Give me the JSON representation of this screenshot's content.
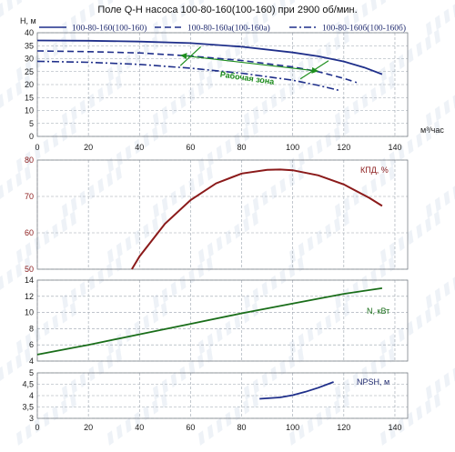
{
  "chart_data": {
    "title": "Поле Q-H насоса 100-80-160(100-160) при 2900 об/мин.",
    "x_unit": "м³/час",
    "x_ticks": [
      0,
      20,
      40,
      60,
      80,
      100,
      120,
      140
    ],
    "xlim": [
      0,
      145
    ],
    "colors": {
      "blue": "#1f2f8a",
      "green": "#1e8f1e",
      "red": "#8b1a1a",
      "dark_green": "#1a6e1a"
    },
    "panels": [
      {
        "id": "qh",
        "type": "line",
        "ylabel": "H, м",
        "ylim": [
          0,
          40
        ],
        "y_ticks": [
          0,
          5,
          10,
          15,
          20,
          25,
          30,
          35,
          40
        ],
        "legend_position": "top",
        "series": [
          {
            "name": "100-80-160(100-160)",
            "style": "solid",
            "x": [
              0,
              20,
              40,
              60,
              80,
              100,
              110,
              120,
              128,
              135
            ],
            "y": [
              37,
              36.9,
              36.6,
              36,
              34.6,
              32.4,
              30.9,
              28.9,
              26.6,
              24
            ]
          },
          {
            "name": "100-80-160а(100-160а)",
            "style": "dashed",
            "x": [
              0,
              20,
              40,
              60,
              80,
              100,
              110,
              120,
              125
            ],
            "y": [
              33,
              32.7,
              32.2,
              31,
              29.3,
              26.8,
              25,
              22.4,
              20.8
            ]
          },
          {
            "name": "100-80-160б(100-160б)",
            "style": "dashdot",
            "x": [
              0,
              20,
              40,
              60,
              80,
              100,
              110,
              118
            ],
            "y": [
              29,
              28.6,
              27.8,
              26.3,
              24.4,
              21.7,
              19.7,
              17.8
            ]
          }
        ],
        "annotations": {
          "work_zone_label": "Рабочая зона",
          "work_zone_lines": [
            {
              "x": [
                56,
                64
              ],
              "y": [
                27.3,
                34.6
              ]
            },
            {
              "x": [
                103,
                114
              ],
              "y": [
                22.2,
                29.2
              ]
            },
            {
              "x": [
                56,
                110
              ],
              "y": [
                31.3,
                25.2
              ]
            }
          ]
        }
      },
      {
        "id": "eff",
        "type": "line",
        "label": "КПД, %",
        "ylim": [
          50,
          80
        ],
        "y_ticks": [
          50,
          60,
          70,
          80
        ],
        "series": [
          {
            "name": "КПД, %",
            "x": [
              37,
              40,
              50,
              60,
              70,
              80,
              90,
              95,
              100,
              110,
              120,
              130,
              135
            ],
            "y": [
              50,
              53.5,
              62.5,
              69,
              73.6,
              76.3,
              77.3,
              77.4,
              77.2,
              75.8,
              73.3,
              69.6,
              67.4
            ]
          }
        ]
      },
      {
        "id": "power",
        "type": "line",
        "label": "N, кВт",
        "ylim": [
          4,
          14
        ],
        "y_ticks": [
          4,
          6,
          8,
          10,
          12,
          14
        ],
        "series": [
          {
            "name": "N, кВт",
            "x": [
              0,
              20,
              40,
              60,
              80,
              100,
              120,
              135
            ],
            "y": [
              4.8,
              6,
              7.3,
              8.6,
              9.9,
              11.1,
              12.3,
              13
            ]
          }
        ]
      },
      {
        "id": "npsh",
        "type": "line",
        "label": "NPSH, м",
        "ylim": [
          3,
          5
        ],
        "y_ticks": [
          3,
          3.5,
          4,
          4.5,
          5
        ],
        "series": [
          {
            "name": "NPSH, м",
            "x": [
              87,
              95,
              100,
              105,
              110,
              116
            ],
            "y": [
              3.86,
              3.92,
              4.02,
              4.17,
              4.35,
              4.6
            ]
          }
        ]
      }
    ]
  }
}
